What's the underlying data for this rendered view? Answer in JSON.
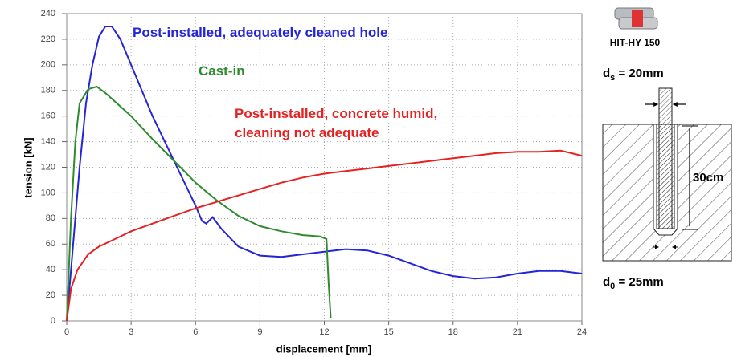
{
  "chart_data": {
    "type": "line",
    "xlabel": "displacement [mm]",
    "ylabel": "tension [kN]",
    "xlim": [
      0,
      24
    ],
    "xticks": [
      0,
      3,
      6,
      9,
      12,
      15,
      18,
      21,
      24
    ],
    "ylim": [
      0,
      240
    ],
    "yticks": [
      0,
      20,
      40,
      60,
      80,
      100,
      120,
      140,
      160,
      180,
      200,
      220,
      240
    ],
    "grid": true,
    "annotations": [
      {
        "lines": [
          "Post-installed, adequately cleaned hole"
        ],
        "color": "#2424d8"
      },
      {
        "lines": [
          "Cast-in"
        ],
        "color": "#2e8b2e"
      },
      {
        "lines": [
          "Post-installed, concrete humid,",
          "cleaning not adequate"
        ],
        "color": "#e52222"
      }
    ],
    "series": [
      {
        "color": "#2424d8",
        "x": [
          0,
          0.3,
          0.6,
          0.9,
          1.2,
          1.5,
          1.8,
          2.1,
          2.5,
          3,
          4,
          5,
          6,
          6.3,
          6.5,
          6.8,
          7.2,
          8,
          9,
          10,
          11,
          12,
          13,
          14,
          15,
          16,
          17,
          18,
          19,
          20,
          21,
          22,
          23,
          24
        ],
        "values": [
          0,
          60,
          120,
          170,
          200,
          222,
          230,
          230,
          220,
          200,
          160,
          125,
          90,
          78,
          76,
          81,
          72,
          58,
          51,
          50,
          52,
          54,
          56,
          55,
          51,
          45,
          39,
          35,
          33,
          34,
          37,
          39,
          39,
          37
        ]
      },
      {
        "color": "#2e8b2e",
        "x": [
          0,
          0.2,
          0.4,
          0.6,
          1,
          1.4,
          1.8,
          3,
          4,
          5,
          6,
          7,
          8,
          9,
          10,
          11,
          11.8,
          12.1,
          12.2,
          12.3
        ],
        "values": [
          0,
          80,
          140,
          170,
          181,
          183,
          178,
          160,
          142,
          125,
          108,
          94,
          82,
          74,
          70,
          67,
          66,
          64,
          30,
          2
        ]
      },
      {
        "color": "#e52222",
        "x": [
          0,
          0.2,
          0.5,
          1,
          1.5,
          2,
          3,
          4,
          5,
          6,
          7,
          8,
          9,
          10,
          11,
          12,
          13,
          14,
          15,
          16,
          17,
          18,
          19,
          20,
          21,
          22,
          23,
          23.5,
          24
        ],
        "values": [
          0,
          25,
          40,
          52,
          58,
          62,
          70,
          76,
          82,
          88,
          93,
          98,
          103,
          108,
          112,
          115,
          117,
          119,
          121,
          123,
          125,
          127,
          129,
          131,
          132,
          132,
          133,
          131,
          129
        ]
      }
    ]
  },
  "side_panel": {
    "product": "HIT-HY 150",
    "rod": {
      "symbol": "d",
      "subscript": "s",
      "text": " = 20mm"
    },
    "depth": "30cm",
    "hole": {
      "symbol": "d",
      "subscript": "0",
      "text": " = 25mm"
    }
  }
}
